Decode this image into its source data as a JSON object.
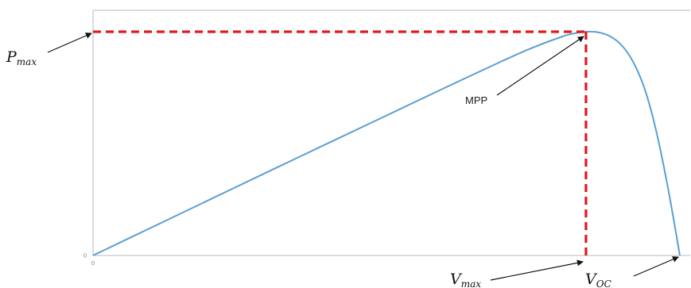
{
  "chart_data": {
    "type": "line",
    "title": "",
    "xlabel": "",
    "ylabel": "",
    "x_ticks": [
      "0"
    ],
    "y_ticks": [
      "0"
    ],
    "xlim": [
      0,
      1.0
    ],
    "ylim": [
      0,
      1.03
    ],
    "grid": false,
    "colors": {
      "curve": "#5a9fd4",
      "marker_lines": "#e0191b",
      "axes": "#c8c8c8",
      "arrows": "#111111"
    },
    "series": [
      {
        "values_x": [
          0,
          0.1,
          0.2,
          0.3,
          0.4,
          0.5,
          0.6,
          0.7,
          0.75,
          0.8,
          0.82,
          0.84,
          0.86,
          0.88,
          0.9,
          0.92,
          0.94,
          0.96,
          0.98,
          1.0
        ],
        "values_y": [
          0,
          0.118,
          0.236,
          0.354,
          0.471,
          0.588,
          0.705,
          0.82,
          0.874,
          0.92,
          0.933,
          0.94,
          0.938,
          0.922,
          0.885,
          0.815,
          0.7,
          0.52,
          0.28,
          0
        ]
      }
    ],
    "mpp": {
      "x": 0.84,
      "y": 0.94
    },
    "annotations": {
      "pmax": {
        "main": "P",
        "sub": "max"
      },
      "vmax": {
        "main": "V",
        "sub": "max"
      },
      "voc": {
        "main": "V",
        "sub": "OC"
      },
      "mpp": "MPP"
    }
  }
}
